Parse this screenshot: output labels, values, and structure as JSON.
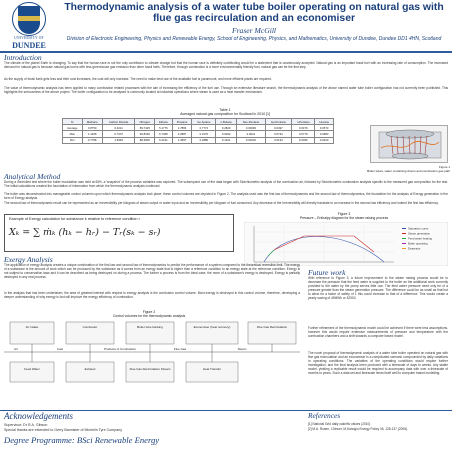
{
  "header": {
    "logo_top": "UNIVERSITY OF",
    "logo_word": "DUNDEE",
    "title": "Thermodynamic analysis of a water tube boiler operating on natural gas with flue gas recirculation and an economiser",
    "author": "Fraser McGill",
    "affiliation": "Division of Electronic Engineering, Physics and Renewable Energy, School of Engineering, Physics, and Mathematics, University of Dundee, Dundee DD1 4HN, Scotland"
  },
  "intro": {
    "heading": "Introduction",
    "p1": "The climate of the planet Earth is changing. To say that the human race is not the only contributor to climate change but that the human race is definitely contributing would be a statement that is unanimously accepted. Natural gas is an important fossil fuel with an increasing rate of consumption. The increased demand for natural gas is because natural gas burns with less greenhouse gas emission than other fossil fuels. Therefore, through combustion is a more environmentally friendly fuel, natural gas can be the first step.",
    "p2": "As the supply of fossil fuels gets less and their cost increases, the cost will only increase. The need to make best use of the available fuel is paramount, and more efficient plants are required.",
    "p3": "The value of thermodynamic analysis has been applied to many combustion related processes with the aim of increasing the efficiency of the fuel use. Through an extensive literature search, the thermodynamic analysis of the above named water tube boiler configuration has not currently been published. This highlights the seriousness of the above project. The boiler configuration to be analysed is commonly located at industrial operations where steam is used as a heat transfer mechanism."
  },
  "table1": {
    "caption": "Table 1\nAveraged natural gas composition for Scotland in 2010 [1]",
    "headers": [
      "%",
      "Methane",
      "Carbon Dioxide",
      "Nitrogen",
      "Ethane",
      "Propane",
      "Iso-butane",
      "n-Butane",
      "Neo-Pentane",
      "Iso-Pentane",
      "n-Pentane",
      "Hexane"
    ],
    "rows": [
      [
        "Average",
        "0.8750",
        "0.4211",
        "89.7425",
        "5.1776",
        "1.7884",
        "0.7772",
        "0.2820",
        "0.00093",
        "0.0497",
        "0.0479",
        "0.0573"
      ],
      [
        "Max",
        "1.1468",
        "0.7470",
        "90.8320",
        "6.7468",
        "2.2887",
        "0.3170",
        "0.0392",
        "0.0021",
        "0.0734",
        "0.0779",
        "0.0983"
      ],
      [
        "Min",
        "0.7788",
        "1.8439",
        "88.4800",
        "6.2151",
        "1.4957",
        "0.2880",
        "0.1321",
        "0.00032",
        "0.0194",
        "0.0396",
        "0.0220"
      ]
    ]
  },
  "figure1": {
    "caption": "Figure 1\nBoiler tubes, water containing drums and combustion gas path"
  },
  "analytical": {
    "heading": "Analytical Method",
    "p1": "During a controlled test where the boiler modulation was held at 65%, a 'snapshot' of the process variables was captured. The subsequent use of the data began with Stoichiometric analysis of the combustion air, followed by Stoichiometric combustion analysis specific to the measured gas composition for the test. The initial calculations created the foundation of information from which the thermodynamic analysis continued.",
    "p2": "The boiler was deconstructed into manageable control volumes upon which thermodynamic analysis took place; these control volumes are depicted in Figure 2. The analysis used was the first law of thermodynamics and the second law of thermodynamics, the foundation for the analysis of Exergy generation in the form of Exergy analysis.",
    "p3": "The second law of thermodynamic result can be represented as an Irreversibility per kilogram of steam output or water input and an Irreversibility per kilogram of fuel consumed. Any decrease of the Irreversibility will directly translate to an increase in the second law efficiency and indeed the first law efficiency."
  },
  "equation": {
    "label": "Example of Exergy calculation for substance k relative to reference condition r",
    "formula": "Xₖ = ∑ ṁₖ (hₖ − hᵣ) − Tᵣ(sₖ − sᵣ)"
  },
  "figure3": {
    "caption": "Figure 3\nPressure – Enthalpy diagram for the steam raising process",
    "legend": [
      "Saturation curve",
      "Steam generation",
      "Feed water heating",
      "Boiler operating",
      "Deaerator"
    ]
  },
  "exergy": {
    "heading": "Exergy Analysis",
    "p1": "The application of exergy analysis creates a unique combination of the first law and second law of thermodynamics to predict the performance of a system compared to the theoretical reversible limit. The exergy of a substance is the amount of work which can be produced by the substance as it comes from an exergy state that is higher than a reference condition to an exergy state at the reference condition. Exergy is not subject to conservation laws and it can be described as being destroyed on during a process. The further a process is from the ideal case, the more of a substance's exergy is destroyed. Exergy is partially destroyed in any real process.",
    "p2": "In the analysis that has been undertaken, the area of greatest interest with respect to exergy analysis is the combustor control volume. Most exergy is destroyed in this control volume, therefore, developing a deeper understanding of why exergy is lost will improve the exergy efficiency of combustion."
  },
  "figure2": {
    "caption": "Figure 2\nControl volumes for the thermodynamic analysis",
    "boxes": [
      "Air Intake",
      "Combustor",
      "Boiler tube banking",
      "Economiser (heat recovery)",
      "Flue Gas Recirculation",
      "Air",
      "Fuel",
      "Products of Combustion",
      "Flue Gas",
      "Steam",
      "Feed Water",
      "Exhaust",
      "Flue Gas Recirculation Stream",
      "Heat Transfer"
    ]
  },
  "future": {
    "heading": "Future work",
    "p1": "With reference to Figure 3, a future improvement to the steam raising process would be to decrease the pressure that the feed water is supplied to the boiler as the additional work currently provided to the water by the pump serves little use. The feed water pressure need only be of a pressure greater than the steam generation pressure. The difference could be as small as that but to allow for a factor of safety of 1 this could increase to that of a difference. This would create a yearly saving of 45MWh or £2500.",
    "p2": "Further refinement of the thermodynamic model could be achieved if there were less assumptions, however this would require extensive measurements of pressure and temperature with the combustion chambers and a shift towards a computer based model.",
    "p3": "The novel proposal of thermodynamic analysis of a water tube boiler operated on natural gas with flue gas recirculation and an economiser is a complicated scenario compounded by daily variations in operating conditions. The variables of the operating conditions would require further investigation, and the final analysis been produced with a timescale of days to weeks. Any stable model, yielding a replicable result would be required to accompany data with over a timescale of months to years. Such a data set and timescale lends itself well to computer based modelling."
  },
  "acknowledgements": {
    "heading": "Acknowledgements",
    "supervisor": "Supervisor: Dr R.A. Gibson",
    "thanks": "Special thanks are extended to Gerry Bannister of Michelin Tyre Company"
  },
  "degree": "Degree Programme: BSci Renewable Energy",
  "references": {
    "heading": "References",
    "items": [
      "[1] National Grid daily calorific values (2010)",
      "[2] M.A. Rosen, I.Dincer, M.Kanoglu Energy Policy 36, 128-137 (2008)."
    ]
  },
  "colors": {
    "heading": "#1a3f7a",
    "rule": "#2d5b9b"
  }
}
